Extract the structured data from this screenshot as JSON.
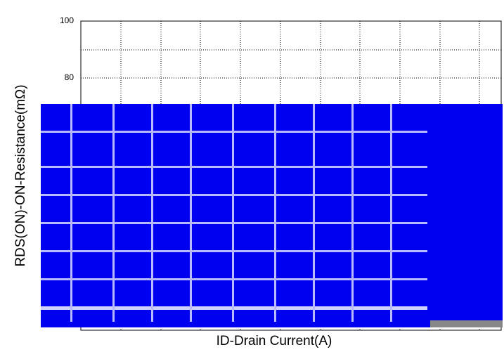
{
  "chart_data": {
    "type": "line",
    "xlabel": "ID-Drain Current(A)",
    "ylabel": "RDS(ON)-ON-Resistance(mΩ)",
    "ylim": [
      0,
      100
    ],
    "yticks": [
      80,
      100
    ],
    "grid": true
  }
}
